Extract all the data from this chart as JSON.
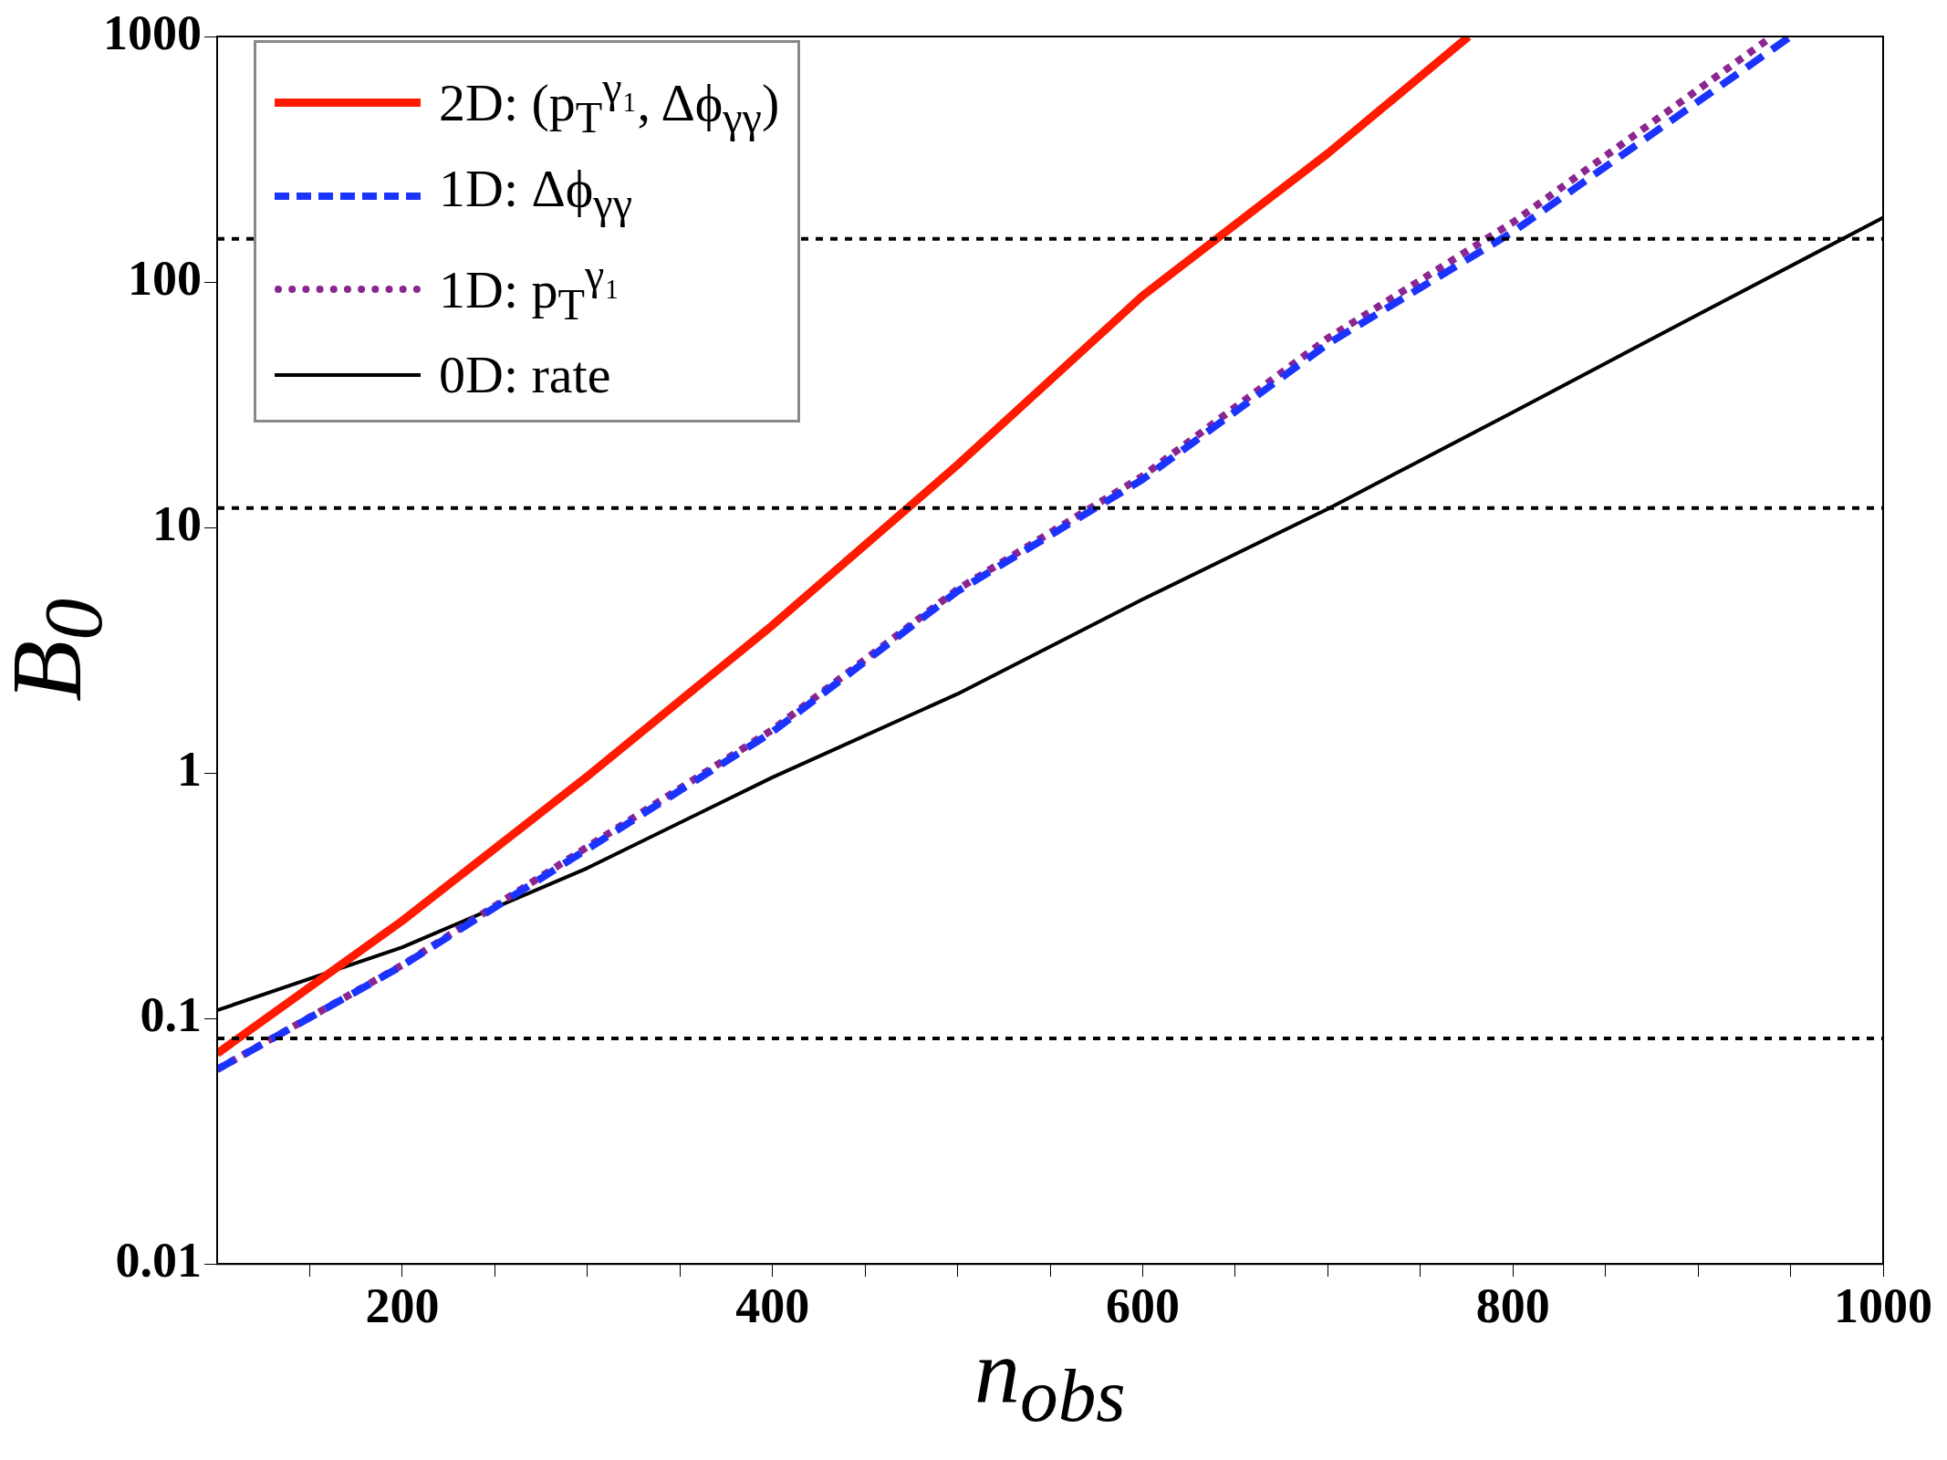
{
  "chart_data": {
    "type": "line",
    "xlabel": "n$_{obs}$",
    "ylabel": "B$_{0}$",
    "log": "y",
    "grid": false,
    "legend": "top left",
    "marker": "none",
    "xlim": [
      100,
      1000
    ],
    "xticks": [
      {
        "value": 150,
        "label": null
      },
      200,
      {
        "value": 250,
        "label": null
      },
      {
        "value": 300,
        "label": null
      },
      {
        "value": 350,
        "label": null
      },
      400,
      {
        "value": 450,
        "label": null
      },
      {
        "value": 500,
        "label": null
      },
      {
        "value": 550,
        "label": null
      },
      600,
      {
        "value": 650,
        "label": null
      },
      {
        "value": 700,
        "label": null
      },
      {
        "value": 750,
        "label": null
      },
      800,
      {
        "value": 850,
        "label": null
      },
      {
        "value": 900,
        "label": null
      },
      {
        "value": 950,
        "label": null
      },
      1000
    ],
    "ylim": [
      0.01,
      1000
    ],
    "yticks": [
      0.01,
      0.1,
      1,
      10,
      100,
      1000
    ],
    "series": [
      {
        "name": "2D: (p$_{T}$$^{γ₁}$, Δϕ$_{γγ}$)",
        "color": "#ff1a00",
        "line_style": "solid",
        "x": [
          100,
          200,
          300,
          400,
          500,
          600,
          700,
          776
        ],
        "values": [
          0.072,
          0.25,
          0.97,
          4.0,
          18,
          88,
          334,
          1000
        ]
      },
      {
        "name": "1D: Δϕ$_{γγ}$",
        "color": "#1a33ff",
        "line_style": "dashed",
        "x": [
          100,
          200,
          300,
          400,
          500,
          600,
          700,
          800,
          950
        ],
        "values": [
          0.062,
          0.164,
          0.49,
          1.47,
          5.5,
          15.7,
          56,
          160,
          1000
        ]
      },
      {
        "name": "1D: p$_{T}$$^{γ₁}$",
        "color": "#8b2590",
        "line_style": "dotted",
        "x": [
          100,
          200,
          300,
          400,
          500,
          600,
          700,
          800,
          940
        ],
        "values": [
          0.062,
          0.165,
          0.5,
          1.5,
          5.6,
          16.2,
          59,
          175,
          1000
        ]
      },
      {
        "name": "0D: rate",
        "color": "#000000",
        "line_style": "solid",
        "x": [
          100,
          200,
          300,
          400,
          500,
          600,
          700,
          800,
          900,
          1000
        ],
        "values": [
          0.108,
          0.195,
          0.41,
          0.96,
          2.1,
          5.1,
          11.9,
          29.5,
          73.6,
          183
        ]
      }
    ],
    "ref_lines": [
      {
        "axis": "y",
        "value": 150,
        "color": "#000000",
        "line_style": "dotted"
      },
      {
        "axis": "y",
        "value": 12,
        "color": "#000000",
        "line_style": "dotted"
      },
      {
        "axis": "y",
        "value": 0.083,
        "color": "#000000",
        "line_style": "dotted"
      }
    ]
  }
}
